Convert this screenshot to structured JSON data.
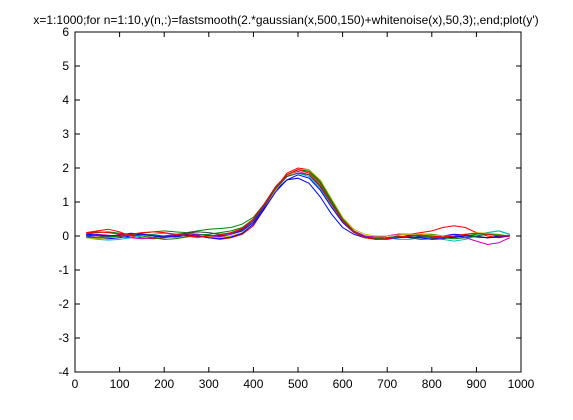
{
  "chart_data": {
    "type": "line",
    "title": "x=1:1000;for n=1:10,y(n,:)=fastsmooth(2.*gaussian(x,500,150)+whitenoise(x),50,3);,end;plot(y')",
    "xlabel": "",
    "ylabel": "",
    "xlim": [
      0,
      1000
    ],
    "ylim": [
      -4,
      6
    ],
    "xticks": [
      0,
      100,
      200,
      300,
      400,
      500,
      600,
      700,
      800,
      900,
      1000
    ],
    "yticks": [
      -4,
      -3,
      -2,
      -1,
      0,
      1,
      2,
      3,
      4,
      5,
      6
    ],
    "grid": false,
    "legend": "none",
    "x": [
      25,
      50,
      75,
      100,
      125,
      150,
      175,
      200,
      225,
      250,
      275,
      300,
      325,
      350,
      375,
      400,
      425,
      450,
      475,
      500,
      525,
      550,
      575,
      600,
      625,
      650,
      675,
      700,
      725,
      750,
      775,
      800,
      825,
      850,
      875,
      900,
      925,
      950,
      975
    ],
    "series": [
      {
        "color": "#0000ff",
        "values": [
          0.0,
          -0.05,
          -0.08,
          -0.05,
          0.0,
          0.03,
          0.0,
          -0.05,
          -0.03,
          0.02,
          0.05,
          0.02,
          0.0,
          0.05,
          0.15,
          0.4,
          0.85,
          1.35,
          1.65,
          1.7,
          1.55,
          1.15,
          0.65,
          0.25,
          0.05,
          -0.05,
          -0.05,
          0.0,
          0.05,
          0.02,
          -0.03,
          -0.05,
          0.0,
          0.05,
          0.03,
          -0.02,
          -0.05,
          0.0,
          0.02
        ]
      },
      {
        "color": "#008000",
        "values": [
          0.05,
          0.1,
          0.12,
          0.08,
          0.05,
          0.08,
          0.12,
          0.15,
          0.12,
          0.1,
          0.15,
          0.2,
          0.22,
          0.25,
          0.35,
          0.55,
          0.95,
          1.45,
          1.8,
          1.95,
          1.9,
          1.55,
          1.0,
          0.5,
          0.15,
          -0.05,
          -0.1,
          -0.1,
          -0.05,
          0.0,
          0.05,
          0.05,
          0.0,
          -0.05,
          0.0,
          0.05,
          0.1,
          0.15,
          0.05
        ]
      },
      {
        "color": "#ff0000",
        "values": [
          0.1,
          0.15,
          0.2,
          0.12,
          0.0,
          -0.05,
          -0.08,
          -0.05,
          0.0,
          0.05,
          0.0,
          -0.05,
          -0.1,
          -0.05,
          0.05,
          0.3,
          0.8,
          1.4,
          1.85,
          2.0,
          1.95,
          1.6,
          1.05,
          0.5,
          0.15,
          0.0,
          -0.05,
          0.0,
          0.05,
          0.05,
          0.1,
          0.15,
          0.25,
          0.3,
          0.25,
          0.1,
          0.0,
          -0.05,
          0.0
        ]
      },
      {
        "color": "#00bfbf",
        "values": [
          -0.05,
          -0.1,
          -0.12,
          -0.1,
          -0.05,
          0.0,
          0.05,
          0.08,
          0.05,
          0.0,
          -0.05,
          0.0,
          0.05,
          0.1,
          0.2,
          0.45,
          0.9,
          1.4,
          1.75,
          1.85,
          1.75,
          1.4,
          0.9,
          0.45,
          0.15,
          0.0,
          -0.05,
          -0.05,
          -0.1,
          -0.1,
          -0.05,
          -0.05,
          -0.1,
          -0.15,
          -0.1,
          0.0,
          0.1,
          0.15,
          0.05
        ]
      },
      {
        "color": "#bf00bf",
        "values": [
          0.0,
          0.05,
          0.02,
          -0.02,
          -0.05,
          -0.08,
          -0.05,
          0.0,
          0.05,
          0.08,
          0.05,
          0.0,
          -0.03,
          0.05,
          0.2,
          0.5,
          0.95,
          1.45,
          1.8,
          1.9,
          1.8,
          1.45,
          0.95,
          0.45,
          0.15,
          0.0,
          -0.03,
          0.0,
          0.05,
          0.05,
          0.0,
          -0.05,
          -0.05,
          0.0,
          -0.05,
          -0.15,
          -0.25,
          -0.2,
          -0.05
        ]
      },
      {
        "color": "#bfbf00",
        "values": [
          -0.05,
          -0.08,
          -0.05,
          0.0,
          0.05,
          0.03,
          0.0,
          -0.03,
          -0.05,
          -0.03,
          0.0,
          -0.03,
          -0.05,
          0.0,
          0.1,
          0.35,
          0.8,
          1.35,
          1.75,
          1.95,
          1.95,
          1.65,
          1.1,
          0.55,
          0.2,
          0.05,
          0.0,
          0.0,
          0.03,
          0.05,
          0.05,
          0.03,
          0.0,
          0.0,
          0.05,
          0.1,
          0.08,
          0.05,
          0.0
        ]
      },
      {
        "color": "#404040",
        "values": [
          0.02,
          0.0,
          -0.03,
          0.0,
          0.03,
          0.05,
          0.03,
          0.0,
          0.03,
          0.08,
          0.12,
          0.1,
          0.05,
          0.08,
          0.18,
          0.45,
          0.9,
          1.4,
          1.75,
          1.85,
          1.8,
          1.45,
          0.95,
          0.45,
          0.12,
          -0.05,
          -0.1,
          -0.05,
          0.0,
          -0.05,
          -0.1,
          -0.08,
          -0.03,
          0.0,
          0.03,
          0.0,
          -0.05,
          -0.03,
          0.0
        ]
      },
      {
        "color": "#0000ff",
        "values": [
          0.05,
          0.03,
          0.0,
          0.03,
          0.08,
          0.05,
          0.0,
          -0.03,
          0.0,
          0.03,
          0.0,
          -0.05,
          -0.08,
          -0.03,
          0.08,
          0.35,
          0.8,
          1.3,
          1.65,
          1.8,
          1.7,
          1.35,
          0.85,
          0.4,
          0.1,
          -0.03,
          -0.08,
          -0.08,
          -0.05,
          -0.03,
          -0.05,
          -0.1,
          -0.08,
          -0.03,
          0.0,
          -0.03,
          -0.05,
          -0.03,
          0.0
        ]
      },
      {
        "color": "#008000",
        "values": [
          -0.03,
          -0.05,
          -0.03,
          0.0,
          0.02,
          0.0,
          -0.05,
          -0.1,
          -0.08,
          -0.03,
          0.02,
          0.05,
          0.1,
          0.15,
          0.25,
          0.5,
          0.95,
          1.45,
          1.8,
          1.95,
          1.9,
          1.6,
          1.05,
          0.5,
          0.12,
          -0.05,
          -0.08,
          -0.05,
          -0.03,
          0.0,
          0.0,
          -0.03,
          -0.05,
          -0.08,
          -0.05,
          0.0,
          0.05,
          0.03,
          0.0
        ]
      },
      {
        "color": "#ff0000",
        "values": [
          0.08,
          0.12,
          0.1,
          0.05,
          0.05,
          0.1,
          0.12,
          0.1,
          0.05,
          0.0,
          -0.03,
          0.0,
          0.03,
          0.1,
          0.22,
          0.5,
          0.95,
          1.45,
          1.8,
          1.95,
          1.85,
          1.5,
          0.95,
          0.45,
          0.1,
          -0.05,
          -0.1,
          -0.08,
          -0.03,
          0.0,
          0.03,
          0.0,
          -0.03,
          0.0,
          0.05,
          0.08,
          0.05,
          0.0,
          0.0
        ]
      }
    ]
  }
}
